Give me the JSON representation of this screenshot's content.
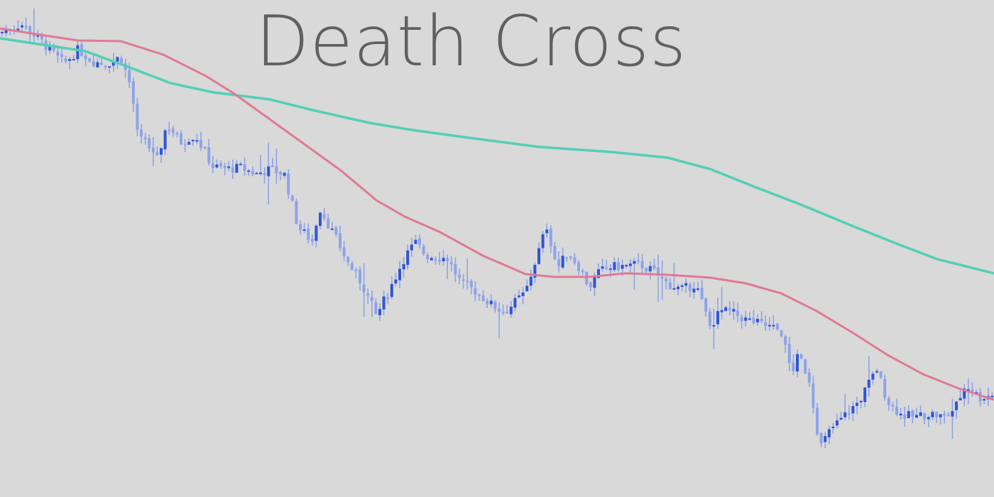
{
  "chart_data": {
    "type": "candlestick",
    "title": "Death Cross",
    "xlabel": "",
    "ylabel": "",
    "ylim": [
      0,
      700
    ],
    "grid": false,
    "legend": "none",
    "colors": {
      "background": "#d9d9d9",
      "title": "#606060",
      "candle_up": "#2f55d4",
      "candle_down": "#8ea3e8",
      "wick": "#8ea3e8",
      "fast_ma": "#df7a93",
      "slow_ma": "#52cfb7"
    },
    "series": [
      {
        "type": "line",
        "points": [
          [
            0,
            660
          ],
          [
            50,
            652
          ],
          [
            110,
            643
          ],
          [
            170,
            642
          ],
          [
            230,
            623
          ],
          [
            290,
            593
          ],
          [
            330,
            568
          ],
          [
            380,
            532
          ],
          [
            430,
            496
          ],
          [
            480,
            460
          ],
          [
            530,
            418
          ],
          [
            570,
            395
          ],
          [
            620,
            373
          ],
          [
            680,
            340
          ],
          [
            740,
            314
          ],
          [
            780,
            310
          ],
          [
            830,
            310
          ],
          [
            880,
            315
          ],
          [
            940,
            313
          ],
          [
            1000,
            309
          ],
          [
            1050,
            301
          ],
          [
            1100,
            287
          ],
          [
            1150,
            262
          ],
          [
            1200,
            232
          ],
          [
            1250,
            200
          ],
          [
            1300,
            173
          ],
          [
            1350,
            153
          ],
          [
            1400,
            137
          ]
        ]
      },
      {
        "type": "line",
        "points": [
          [
            0,
            646
          ],
          [
            60,
            637
          ],
          [
            120,
            628
          ],
          [
            180,
            606
          ],
          [
            240,
            583
          ],
          [
            300,
            570
          ],
          [
            380,
            560
          ],
          [
            440,
            545
          ],
          [
            520,
            527
          ],
          [
            580,
            517
          ],
          [
            660,
            506
          ],
          [
            760,
            493
          ],
          [
            860,
            486
          ],
          [
            940,
            478
          ],
          [
            1000,
            462
          ],
          [
            1060,
            438
          ],
          [
            1130,
            411
          ],
          [
            1200,
            382
          ],
          [
            1260,
            358
          ],
          [
            1320,
            335
          ],
          [
            1400,
            315
          ]
        ]
      },
      {
        "type": "candlestick",
        "points": [
          [
            0,
            654
          ],
          [
            30,
            666
          ],
          [
            60,
            640
          ],
          [
            90,
            610
          ],
          [
            110,
            630
          ],
          [
            130,
            614
          ],
          [
            150,
            610
          ],
          [
            170,
            620
          ],
          [
            185,
            575
          ],
          [
            195,
            500
          ],
          [
            205,
            505
          ],
          [
            220,
            470
          ],
          [
            235,
            525
          ],
          [
            255,
            500
          ],
          [
            275,
            510
          ],
          [
            300,
            465
          ],
          [
            320,
            462
          ],
          [
            340,
            464
          ],
          [
            360,
            455
          ],
          [
            380,
            461
          ],
          [
            400,
            456
          ],
          [
            420,
            380
          ],
          [
            440,
            360
          ],
          [
            450,
            408
          ],
          [
            470,
            370
          ],
          [
            490,
            330
          ],
          [
            510,
            300
          ],
          [
            530,
            255
          ],
          [
            550,
            295
          ],
          [
            570,
            338
          ],
          [
            585,
            358
          ],
          [
            600,
            340
          ],
          [
            630,
            336
          ],
          [
            650,
            300
          ],
          [
            670,
            290
          ],
          [
            690,
            272
          ],
          [
            710,
            260
          ],
          [
            740,
            288
          ],
          [
            770,
            382
          ],
          [
            785,
            322
          ],
          [
            800,
            345
          ],
          [
            815,
            325
          ],
          [
            830,
            296
          ],
          [
            845,
            318
          ],
          [
            860,
            324
          ],
          [
            880,
            325
          ],
          [
            900,
            328
          ],
          [
            920,
            318
          ],
          [
            940,
            300
          ],
          [
            960,
            292
          ],
          [
            980,
            300
          ],
          [
            1000,
            240
          ],
          [
            1015,
            262
          ],
          [
            1030,
            260
          ],
          [
            1050,
            250
          ],
          [
            1070,
            244
          ],
          [
            1100,
            234
          ],
          [
            1115,
            175
          ],
          [
            1125,
            200
          ],
          [
            1140,
            165
          ],
          [
            1155,
            70
          ],
          [
            1170,
            95
          ],
          [
            1190,
            115
          ],
          [
            1210,
            135
          ],
          [
            1225,
            162
          ],
          [
            1235,
            180
          ],
          [
            1250,
            135
          ],
          [
            1270,
            115
          ],
          [
            1290,
            113
          ],
          [
            1310,
            118
          ],
          [
            1330,
            112
          ],
          [
            1345,
            125
          ],
          [
            1360,
            158
          ],
          [
            1380,
            140
          ],
          [
            1400,
            145
          ]
        ]
      }
    ]
  }
}
